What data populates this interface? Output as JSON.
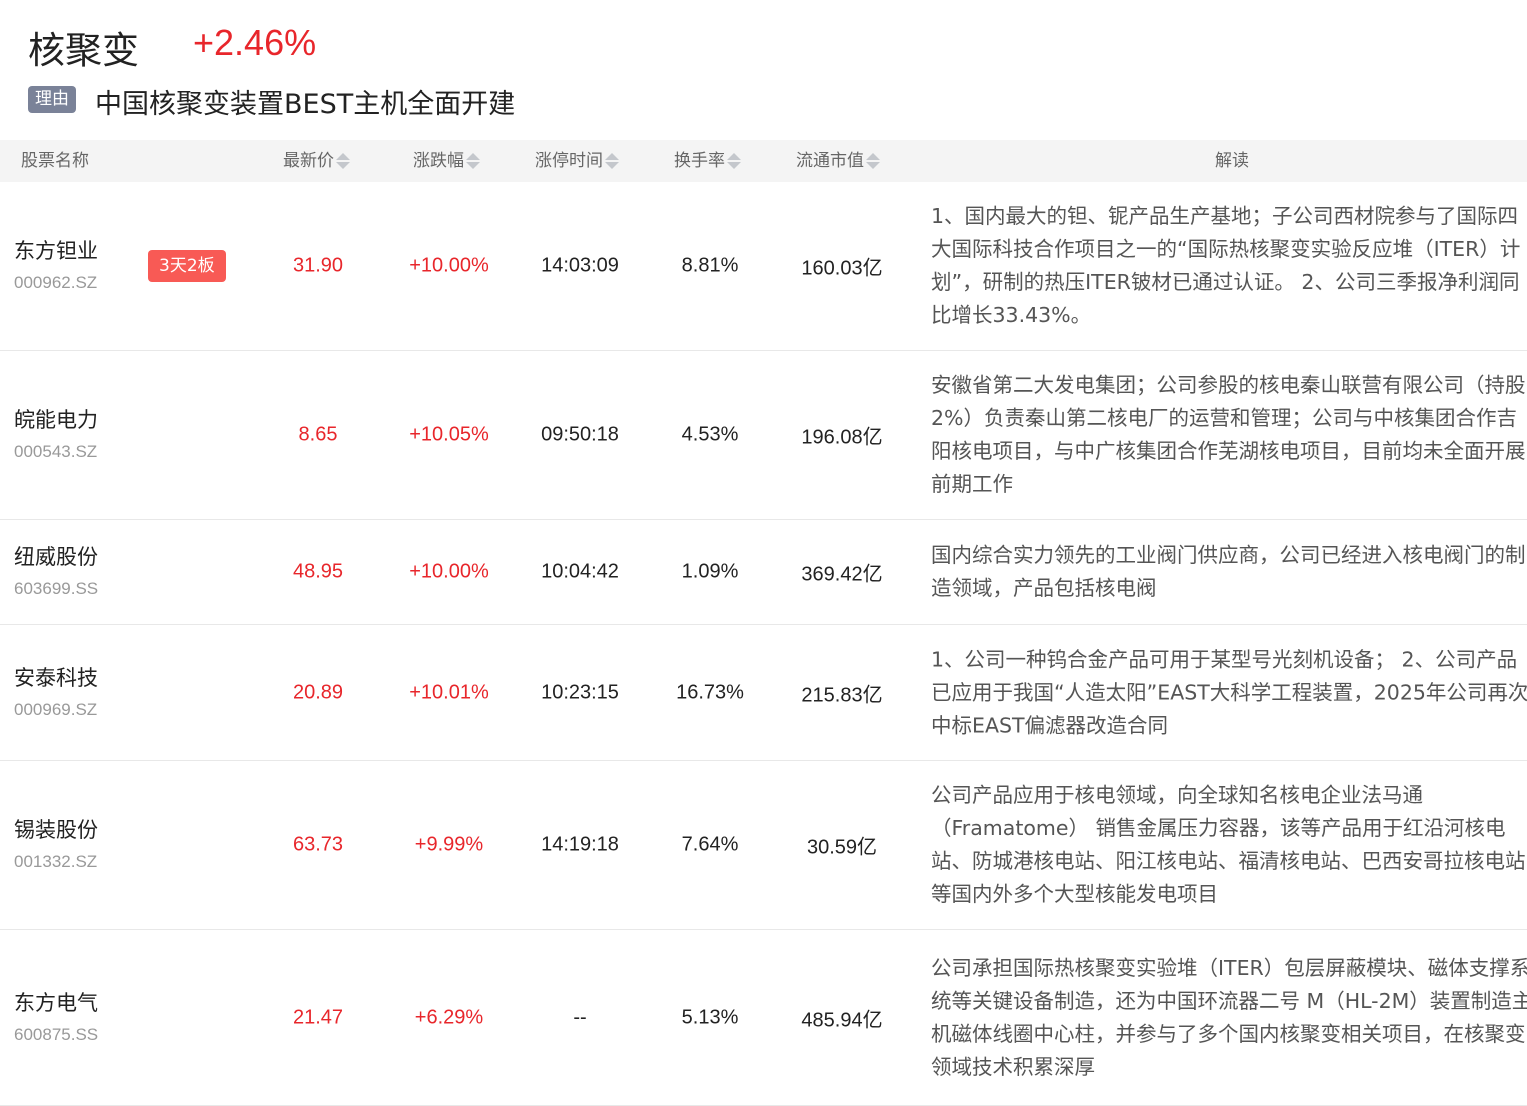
{
  "header": {
    "title": "核聚变",
    "change": "+2.46%",
    "reason_tag": "理由",
    "reason": "中国核聚变装置BEST主机全面开建"
  },
  "colors": {
    "up": "#e8262b",
    "badge": "#f85a55",
    "tag": "#7a8298"
  },
  "table": {
    "columns": [
      "股票名称",
      "最新价",
      "涨跌幅",
      "涨停时间",
      "换手率",
      "流通市值",
      "解读"
    ],
    "rows": [
      {
        "name": "东方钽业",
        "code": "000962.SZ",
        "badge": "3天2板",
        "price": "31.90",
        "change": "+10.00%",
        "limit_time": "14:03:09",
        "turnover": "8.81%",
        "float_cap": "160.03亿",
        "desc": "1、国内最大的钽、铌产品生产基地；子公司西材院参与了国际四大国际科技合作项目之一的“国际热核聚变实验反应堆（ITER）计划”，研制的热压ITER铍材已通过认证。 2、公司三季报净利润同比增长33.43%。"
      },
      {
        "name": "皖能电力",
        "code": "000543.SZ",
        "badge": "",
        "price": "8.65",
        "change": "+10.05%",
        "limit_time": "09:50:18",
        "turnover": "4.53%",
        "float_cap": "196.08亿",
        "desc": "安徽省第二大发电集团；公司参股的核电秦山联营有限公司（持股2%）负责秦山第二核电厂的运营和管理；公司与中核集团合作吉阳核电项目，与中广核集团合作芜湖核电项目，目前均未全面开展前期工作"
      },
      {
        "name": "纽威股份",
        "code": "603699.SS",
        "badge": "",
        "price": "48.95",
        "change": "+10.00%",
        "limit_time": "10:04:42",
        "turnover": "1.09%",
        "float_cap": "369.42亿",
        "desc": "国内综合实力领先的工业阀门供应商，公司已经进入核电阀门的制造领域，产品包括核电阀"
      },
      {
        "name": "安泰科技",
        "code": "000969.SZ",
        "badge": "",
        "price": "20.89",
        "change": "+10.01%",
        "limit_time": "10:23:15",
        "turnover": "16.73%",
        "float_cap": "215.83亿",
        "desc": "1、公司一种钨合金产品可用于某型号光刻机设备； 2、公司产品已应用于我国“人造太阳”EAST大科学工程装置，2025年公司再次中标EAST偏滤器改造合同"
      },
      {
        "name": "锡装股份",
        "code": "001332.SZ",
        "badge": "",
        "price": "63.73",
        "change": "+9.99%",
        "limit_time": "14:19:18",
        "turnover": "7.64%",
        "float_cap": "30.59亿",
        "desc": "公司产品应用于核电领域，向全球知名核电企业法马通（Framatome） 销售金属压力容器，该等产品用于红沿河核电站、防城港核电站、阳江核电站、福清核电站、巴西安哥拉核电站等国内外多个大型核能发电项目"
      },
      {
        "name": "东方电气",
        "code": "600875.SS",
        "badge": "",
        "price": "21.47",
        "change": "+6.29%",
        "limit_time": "--",
        "turnover": "5.13%",
        "float_cap": "485.94亿",
        "desc": "公司承担国际热核聚变实验堆（ITER）包层屏蔽模块、磁体支撑系统等关键设备制造，还为中国环流器二号 M（HL-2M）装置制造主机磁体线圈中心柱，并参与了多个国内核聚变相关项目，在核聚变领域技术积累深厚"
      }
    ]
  }
}
